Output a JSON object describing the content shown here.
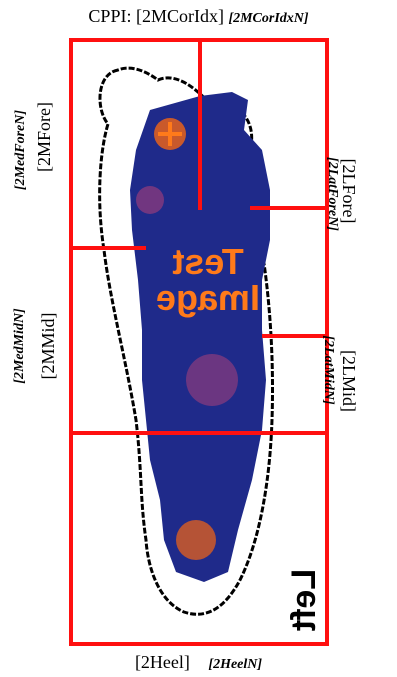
{
  "header": {
    "title": "CPPI: [2MCorIdx]",
    "title_note": "[2MCorIdxN]"
  },
  "regions": {
    "med_fore": {
      "label": "[2MFore]",
      "note": "[2MedForeN]"
    },
    "lat_fore": {
      "label": "[2LFore]",
      "note": "[2LatForeN]"
    },
    "med_mid": {
      "label": "[2MMid]",
      "note": "[2MedMidN]"
    },
    "lat_mid": {
      "label": "[2LMid]",
      "note": "[2LatMidN]"
    },
    "heel": {
      "label": "[2Heel]",
      "note": "[2HeelN]"
    }
  },
  "overlay": {
    "line1": "Test",
    "line2": "Image",
    "foot_side": "Left"
  },
  "colors": {
    "grid_red": "#ff1010",
    "foot_blue": "#1f2a8a",
    "hot_orange": "#e8621a",
    "outline": "#000000"
  }
}
